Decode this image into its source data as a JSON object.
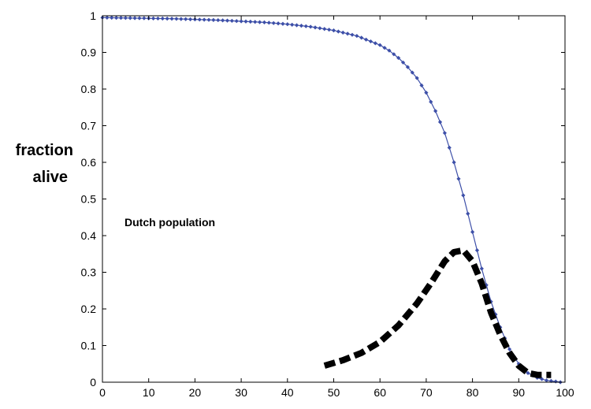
{
  "chart_data": {
    "type": "line",
    "ylabel_lines": [
      "fraction",
      "alive"
    ],
    "annotation": "Dutch population",
    "xlim": [
      0,
      100
    ],
    "ylim": [
      0,
      1
    ],
    "x_ticks": [
      0,
      10,
      20,
      30,
      40,
      50,
      60,
      70,
      80,
      90,
      100
    ],
    "y_ticks": [
      0,
      0.1,
      0.2,
      0.3,
      0.4,
      0.5,
      0.6,
      0.7,
      0.8,
      0.9,
      1
    ],
    "grid": false,
    "legend": "none",
    "series": [
      {
        "style": "line-with-diamond-markers",
        "color": "#3d4fa8",
        "x": [
          0,
          5,
          10,
          15,
          20,
          25,
          30,
          35,
          40,
          45,
          50,
          55,
          60,
          62,
          64,
          66,
          68,
          70,
          72,
          74,
          76,
          78,
          80,
          82,
          84,
          86,
          88,
          90,
          92,
          94,
          96,
          98,
          99
        ],
        "y": [
          0.995,
          0.994,
          0.993,
          0.992,
          0.99,
          0.988,
          0.985,
          0.982,
          0.977,
          0.97,
          0.96,
          0.945,
          0.92,
          0.905,
          0.885,
          0.86,
          0.83,
          0.79,
          0.74,
          0.68,
          0.6,
          0.51,
          0.41,
          0.31,
          0.22,
          0.15,
          0.09,
          0.05,
          0.025,
          0.012,
          0.005,
          0.002,
          0.0
        ]
      },
      {
        "style": "thick-dashed",
        "color": "#000000",
        "x": [
          48,
          52,
          56,
          60,
          64,
          68,
          71,
          74,
          76,
          78,
          80,
          82,
          84,
          86,
          88,
          90,
          92,
          94,
          96,
          97
        ],
        "y": [
          0.045,
          0.06,
          0.08,
          0.11,
          0.155,
          0.215,
          0.27,
          0.33,
          0.355,
          0.36,
          0.33,
          0.27,
          0.19,
          0.13,
          0.08,
          0.045,
          0.025,
          0.02,
          0.02,
          0.02
        ]
      }
    ]
  }
}
